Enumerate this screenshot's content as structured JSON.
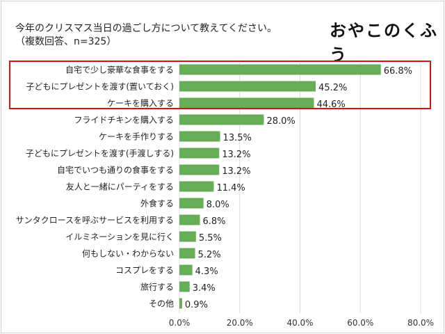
{
  "logo_text": "おやこのくふう",
  "colors": {
    "bar": "#66ad55",
    "highlight": "#e01010",
    "grid": "#d9d9d9"
  },
  "chart_data": {
    "type": "bar",
    "orientation": "horizontal",
    "title": "今年のクリスマス当日の過ごし方について教えてください。",
    "subtitle": "（複数回答、n=325）",
    "categories": [
      "自宅で少し豪華な食事をする",
      "子どもにプレゼントを渡す(置いておく)",
      "ケーキを購入する",
      "フライドチキンを購入する",
      "ケーキを手作りする",
      "子どもにプレゼントを渡す(手渡しする)",
      "自宅でいつも通りの食事をする",
      "友人と一緒にパーティをする",
      "外食する",
      "サンタクロースを呼ぶサービスを利用する",
      "イルミネーションを見に行く",
      "何もしない・わからない",
      "コスプレをする",
      "旅行する",
      "その他"
    ],
    "values": [
      66.8,
      45.2,
      44.6,
      28.0,
      13.5,
      13.2,
      13.2,
      11.4,
      8.0,
      6.8,
      5.5,
      5.2,
      4.3,
      3.4,
      0.9
    ],
    "data_labels": [
      "66.8%",
      "45.2%",
      "44.6%",
      "28.0%",
      "13.5%",
      "13.2%",
      "13.2%",
      "11.4%",
      "8.0%",
      "6.8%",
      "5.5%",
      "5.2%",
      "4.3%",
      "3.4%",
      "0.9%"
    ],
    "xlim": [
      0,
      80
    ],
    "x_ticks": [
      "0.0%",
      "20.0%",
      "40.0%",
      "60.0%",
      "80.0%"
    ],
    "x_tick_values": [
      0,
      20,
      40,
      60,
      80
    ],
    "grid": true,
    "highlighted_rows": [
      0,
      1,
      2
    ]
  }
}
